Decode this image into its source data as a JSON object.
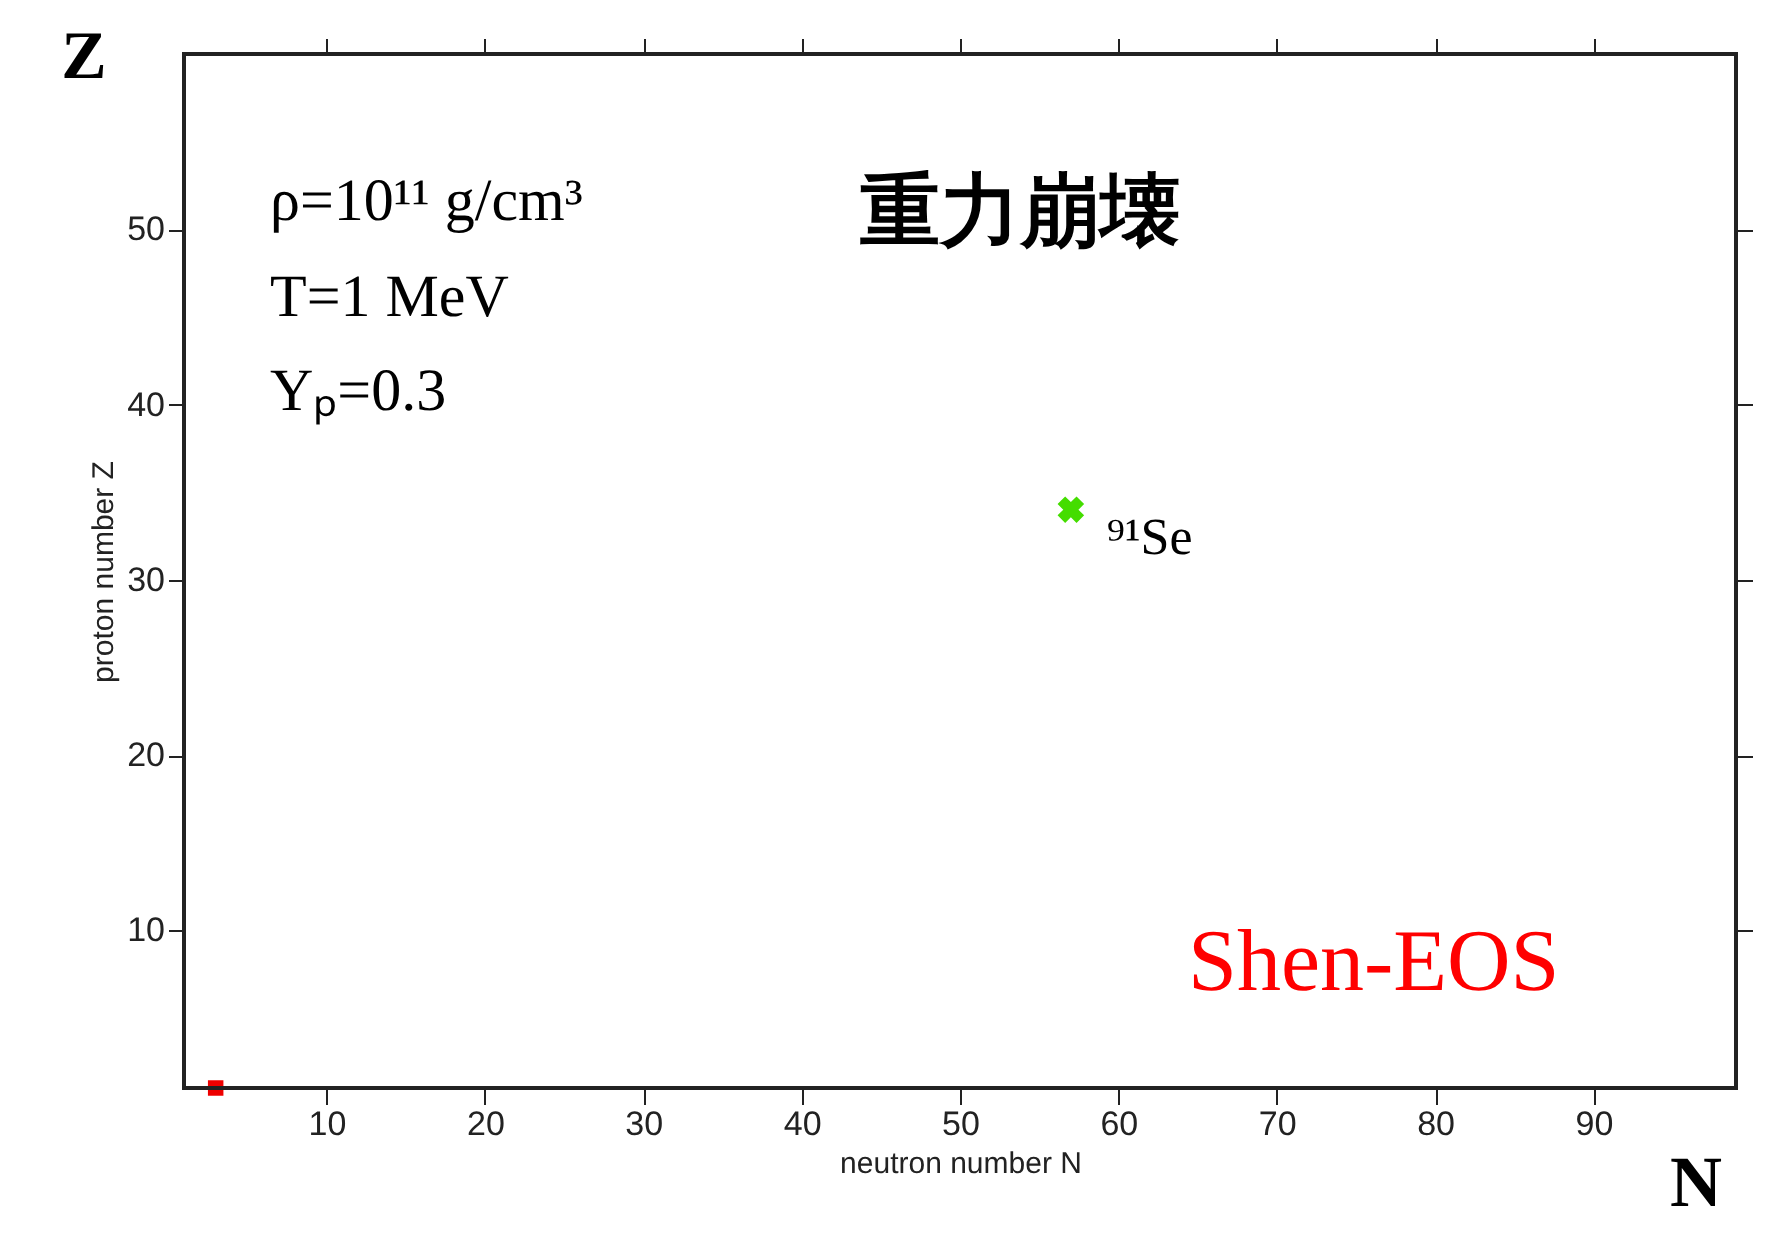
{
  "chart_data": {
    "type": "scatter",
    "xlabel": "neutron number N",
    "ylabel": "proton number Z",
    "xlim": [
      1,
      99
    ],
    "ylim": [
      1,
      60
    ],
    "xticks": [
      10,
      20,
      30,
      40,
      50,
      60,
      70,
      80,
      90
    ],
    "yticks": [
      10,
      20,
      30,
      40,
      50
    ],
    "grid": false,
    "marker": "cross",
    "series": [
      {
        "color": "#44dd00",
        "x": [
          57
        ],
        "values": [
          34
        ]
      },
      {
        "color": "#ee0000",
        "x": [
          3
        ],
        "values": [
          1
        ],
        "marker": "square"
      }
    ],
    "annotations": [
      "Z",
      "N",
      "ρ=10¹¹ g/cm³",
      "T=1 MeV",
      "Yₚ=0.3",
      "重力崩壊",
      "Shen-EOS",
      {
        "text": "⁹¹Se",
        "x": 57,
        "y": 34
      }
    ]
  }
}
